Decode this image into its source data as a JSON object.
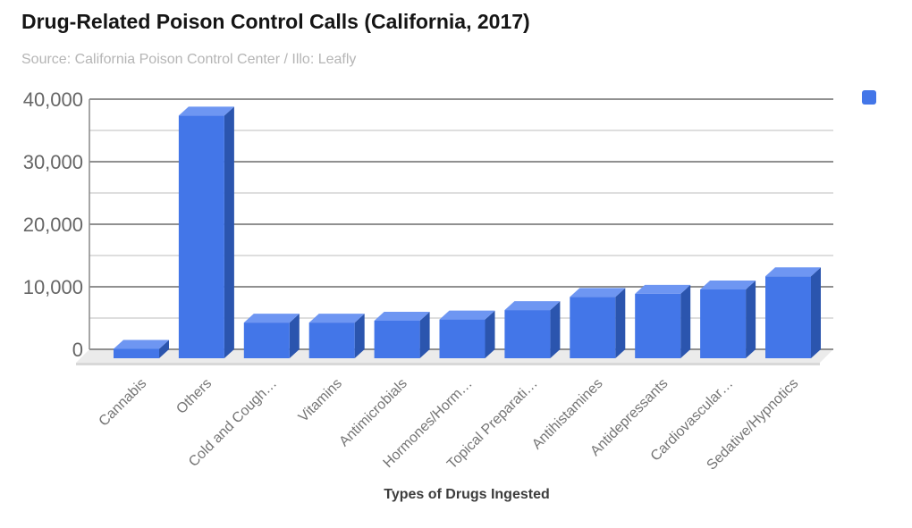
{
  "title": "Drug-Related Poison Control Calls (California, 2017)",
  "subtitle": "Source: California Poison Control Center / Illo: Leafly",
  "xaxis_title": "Types of Drugs Ingested",
  "legend": {
    "swatch_color": "#4376E8",
    "position": "top-right",
    "label": ""
  },
  "colors": {
    "bar_front": "#4376E8",
    "bar_top": "#6E96F2",
    "bar_side": "#2B55AE",
    "grid_major": "#909090",
    "grid_minor": "#c9c9c9",
    "floor": "#ebebeb",
    "floor_edge": "#d8d8d8",
    "ytick_text": "#666666",
    "category_text": "#757575",
    "title_text": "#151515",
    "subtitle_text": "#b5b5b5"
  },
  "chart_data": {
    "type": "bar",
    "style": "3d-column",
    "title": "Drug-Related Poison Control Calls (California, 2017)",
    "subtitle": "Source: California Poison Control Center / Illo: Leafly",
    "xlabel": "Types of Drugs Ingested",
    "ylabel": "",
    "categories": [
      "Cannabis",
      "Others",
      "Cold and Cough…",
      "Vitamins",
      "Antimicrobials",
      "Hormones/Horm…",
      "Topical Preparati…",
      "Antihistamines",
      "Antidepressants",
      "Cardiovascular…",
      "Sedative/Hypnotics"
    ],
    "values": [
      1500,
      38800,
      5700,
      5700,
      6000,
      6200,
      7700,
      9800,
      10300,
      11000,
      13100
    ],
    "series": [
      {
        "name": "",
        "values": [
          1500,
          38800,
          5700,
          5700,
          6000,
          6200,
          7700,
          9800,
          10300,
          11000,
          13100
        ]
      }
    ],
    "ylim": [
      0,
      40000
    ],
    "ytick_step_minor": 5000,
    "ytick_step_major": 10000,
    "ytick_labels": [
      "0",
      "10,000",
      "20,000",
      "30,000",
      "40,000"
    ],
    "grid": true,
    "legend_position": "top-right"
  }
}
